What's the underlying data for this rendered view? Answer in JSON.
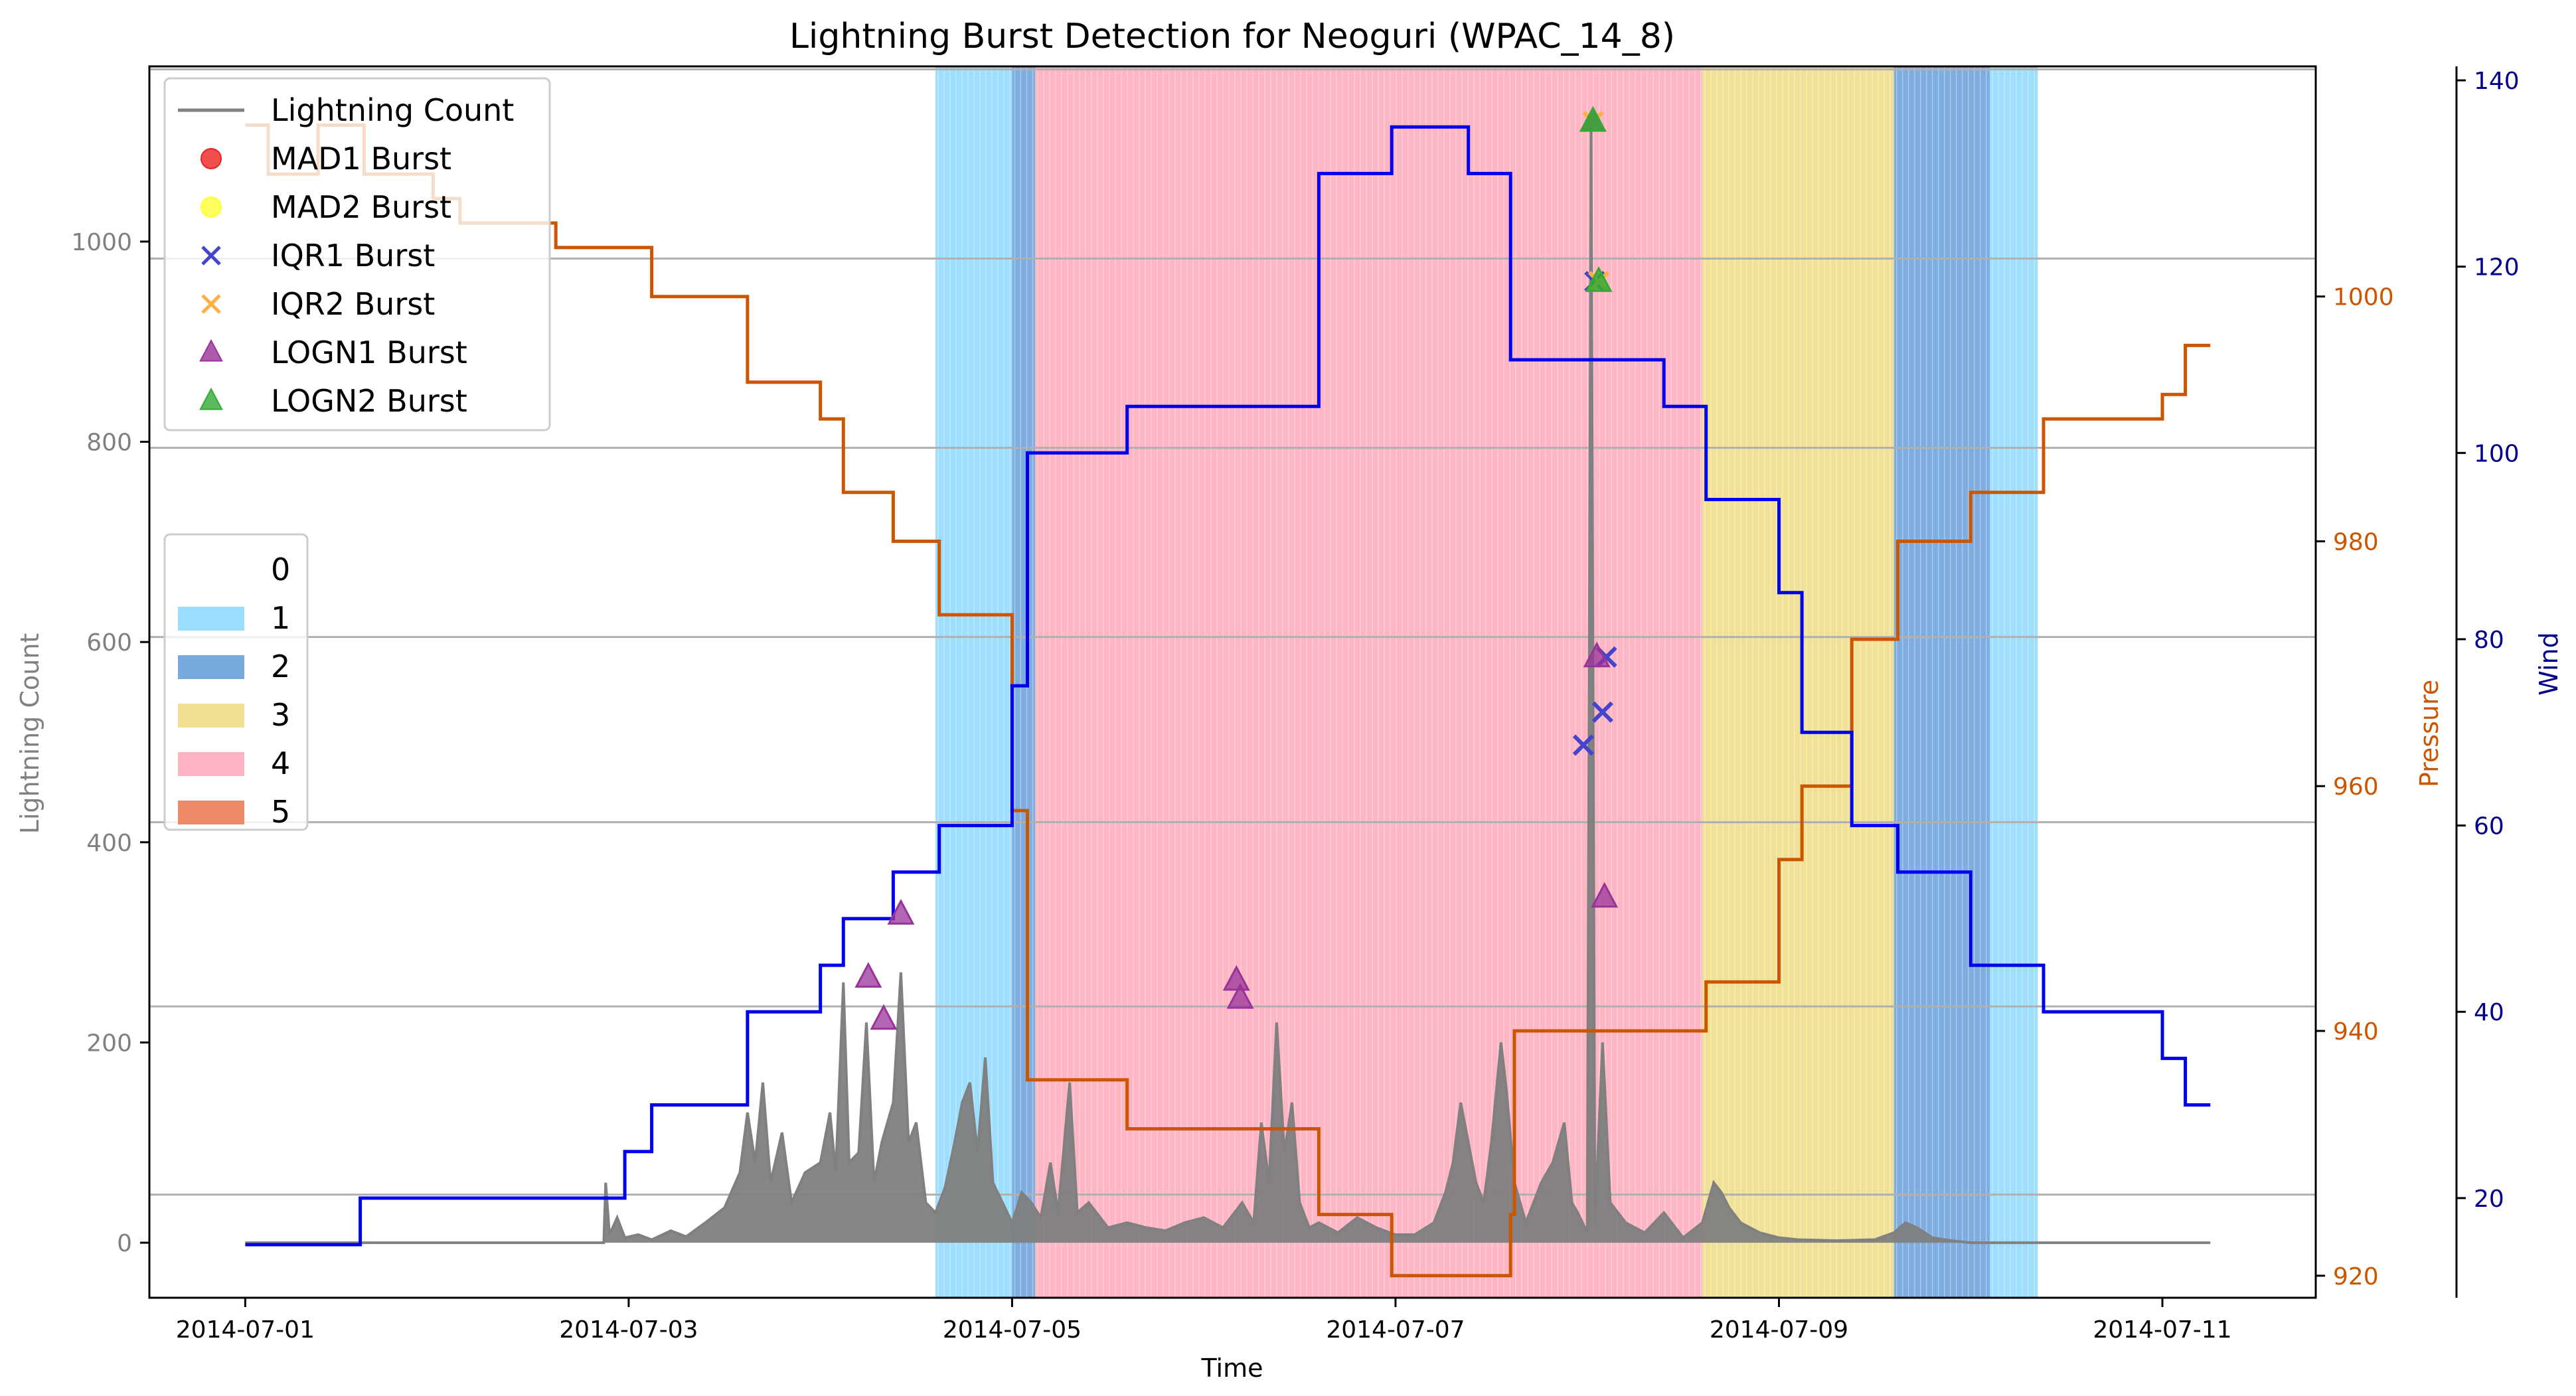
{
  "chart_data": {
    "type": "line",
    "title": "Lightning Burst Detection for Neoguri (WPAC_14_8)",
    "xlabel": "Time",
    "ylabel_left": "Lightning Count",
    "ylabel_right1": "Pressure",
    "ylabel_right2": "Wind",
    "x_ticks": [
      "2014-07-01",
      "2014-07-03",
      "2014-07-05",
      "2014-07-07",
      "2014-07-09",
      "2014-07-11"
    ],
    "x_range_days": [
      -0.5,
      10.8
    ],
    "y_left_ticks": [
      0,
      200,
      400,
      600,
      800,
      1000
    ],
    "y_left_range": [
      -55,
      1175
    ],
    "y_pressure_ticks": [
      920,
      940,
      960,
      980,
      1000
    ],
    "y_pressure_range": [
      918.2,
      1018.8
    ],
    "y_wind_ticks": [
      20,
      40,
      60,
      80,
      100,
      120,
      140
    ],
    "y_wind_range": [
      9.3,
      141.5
    ],
    "grid": "horizontal",
    "colors": {
      "lightning": "#808080",
      "pressure": "#cc5500",
      "wind": "#0000ee",
      "left_axis_text": "#808080",
      "pressure_axis": "#cc5500",
      "wind_axis": "#00008b",
      "cat0": "#ffffff",
      "cat1": "#99ddff",
      "cat2": "#77a9dd",
      "cat3": "#f0df90",
      "cat4": "#ffb2c1",
      "cat5": "#ee8866",
      "mad1": "#ee2222",
      "mad2": "#ffff33",
      "iqr1": "#4444cc",
      "iqr2": "#ffb040",
      "logn1": "#993399",
      "logn2": "#33aa33"
    },
    "legend_series": {
      "position": "upper-left",
      "entries": [
        {
          "label": "Lightning Count",
          "kind": "line",
          "color": "#808080"
        },
        {
          "label": "MAD1 Burst",
          "kind": "circle",
          "color": "#ee2222"
        },
        {
          "label": "MAD2 Burst",
          "kind": "circle",
          "color": "#ffff33"
        },
        {
          "label": "IQR1 Burst",
          "kind": "x",
          "color": "#4444cc"
        },
        {
          "label": "IQR2 Burst",
          "kind": "x",
          "color": "#ffb040"
        },
        {
          "label": "LOGN1 Burst",
          "kind": "triangle",
          "color": "#993399"
        },
        {
          "label": "LOGN2 Burst",
          "kind": "triangle",
          "color": "#33aa33"
        }
      ]
    },
    "legend_categories": {
      "position": "center-left",
      "entries": [
        {
          "label": "0",
          "color": "#ffffff"
        },
        {
          "label": "1",
          "color": "#99ddff"
        },
        {
          "label": "2",
          "color": "#77a9dd"
        },
        {
          "label": "3",
          "color": "#f0df90"
        },
        {
          "label": "4",
          "color": "#ffb2c1"
        },
        {
          "label": "5",
          "color": "#ee8866"
        }
      ]
    },
    "category_bands": [
      {
        "start": 3.6,
        "end": 4.0,
        "cat": 1
      },
      {
        "start": 4.0,
        "end": 4.12,
        "cat": 2
      },
      {
        "start": 4.12,
        "end": 7.6,
        "cat": 4
      },
      {
        "start": 7.6,
        "end": 8.6,
        "cat": 3
      },
      {
        "start": 8.6,
        "end": 9.1,
        "cat": 2
      },
      {
        "start": 9.1,
        "end": 9.35,
        "cat": 1
      }
    ],
    "extra_gridlines_left": [
      1172,
      983,
      794,
      605,
      420,
      236,
      48
    ],
    "wind": [
      [
        0,
        15
      ],
      [
        0.6,
        15
      ],
      [
        0.6,
        20
      ],
      [
        1.98,
        20
      ],
      [
        1.98,
        25
      ],
      [
        2.12,
        25
      ],
      [
        2.12,
        30
      ],
      [
        2.62,
        30
      ],
      [
        2.62,
        40
      ],
      [
        3.0,
        40
      ],
      [
        3.0,
        45
      ],
      [
        3.12,
        45
      ],
      [
        3.12,
        50
      ],
      [
        3.38,
        50
      ],
      [
        3.38,
        55
      ],
      [
        3.62,
        55
      ],
      [
        3.62,
        60
      ],
      [
        4.0,
        60
      ],
      [
        4.0,
        75
      ],
      [
        4.08,
        75
      ],
      [
        4.08,
        100
      ],
      [
        4.6,
        100
      ],
      [
        4.6,
        105
      ],
      [
        5.6,
        105
      ],
      [
        5.6,
        130
      ],
      [
        5.98,
        130
      ],
      [
        5.98,
        135
      ],
      [
        6.38,
        135
      ],
      [
        6.38,
        130
      ],
      [
        6.6,
        130
      ],
      [
        6.6,
        110
      ],
      [
        7.4,
        110
      ],
      [
        7.4,
        105
      ],
      [
        7.62,
        105
      ],
      [
        7.62,
        95
      ],
      [
        8.0,
        95
      ],
      [
        8.0,
        85
      ],
      [
        8.12,
        85
      ],
      [
        8.12,
        70
      ],
      [
        8.38,
        70
      ],
      [
        8.38,
        60
      ],
      [
        8.62,
        60
      ],
      [
        8.62,
        55
      ],
      [
        9.0,
        55
      ],
      [
        9.0,
        45
      ],
      [
        9.38,
        45
      ],
      [
        9.38,
        40
      ],
      [
        10.0,
        40
      ],
      [
        10.0,
        35
      ],
      [
        10.12,
        35
      ],
      [
        10.12,
        30
      ],
      [
        10.25,
        30
      ]
    ],
    "pressure": [
      [
        0,
        1014
      ],
      [
        0.12,
        1014
      ],
      [
        0.12,
        1010
      ],
      [
        0.38,
        1010
      ],
      [
        0.38,
        1014
      ],
      [
        0.62,
        1014
      ],
      [
        0.62,
        1010
      ],
      [
        0.98,
        1010
      ],
      [
        0.98,
        1008
      ],
      [
        1.12,
        1008
      ],
      [
        1.12,
        1006
      ],
      [
        1.62,
        1006
      ],
      [
        1.62,
        1004
      ],
      [
        2.12,
        1004
      ],
      [
        2.12,
        1000
      ],
      [
        2.62,
        1000
      ],
      [
        2.62,
        993
      ],
      [
        3.0,
        993
      ],
      [
        3.0,
        990
      ],
      [
        3.12,
        990
      ],
      [
        3.12,
        984
      ],
      [
        3.38,
        984
      ],
      [
        3.38,
        980
      ],
      [
        3.62,
        980
      ],
      [
        3.62,
        974
      ],
      [
        4.0,
        974
      ],
      [
        4.0,
        958
      ],
      [
        4.08,
        958
      ],
      [
        4.08,
        936
      ],
      [
        4.6,
        936
      ],
      [
        4.6,
        932
      ],
      [
        5.6,
        932
      ],
      [
        5.6,
        925
      ],
      [
        5.98,
        925
      ],
      [
        5.98,
        920
      ],
      [
        6.38,
        920
      ],
      [
        6.38,
        920
      ],
      [
        6.6,
        920
      ],
      [
        6.6,
        925
      ],
      [
        6.62,
        925
      ],
      [
        6.62,
        940
      ],
      [
        7.62,
        940
      ],
      [
        7.62,
        944
      ],
      [
        8.0,
        944
      ],
      [
        8.0,
        954
      ],
      [
        8.12,
        954
      ],
      [
        8.12,
        960
      ],
      [
        8.38,
        960
      ],
      [
        8.38,
        972
      ],
      [
        8.62,
        972
      ],
      [
        8.62,
        980
      ],
      [
        9.0,
        980
      ],
      [
        9.0,
        984
      ],
      [
        9.38,
        984
      ],
      [
        9.38,
        990
      ],
      [
        10.0,
        990
      ],
      [
        10.0,
        992
      ],
      [
        10.12,
        992
      ],
      [
        10.12,
        996
      ],
      [
        10.25,
        996
      ]
    ],
    "lightning": [
      [
        0,
        0
      ],
      [
        1.87,
        0
      ],
      [
        1.88,
        60
      ],
      [
        1.9,
        8
      ],
      [
        1.94,
        25
      ],
      [
        1.98,
        5
      ],
      [
        2.05,
        8
      ],
      [
        2.12,
        3
      ],
      [
        2.22,
        12
      ],
      [
        2.3,
        6
      ],
      [
        2.4,
        20
      ],
      [
        2.5,
        35
      ],
      [
        2.58,
        70
      ],
      [
        2.62,
        130
      ],
      [
        2.66,
        80
      ],
      [
        2.7,
        160
      ],
      [
        2.74,
        60
      ],
      [
        2.8,
        110
      ],
      [
        2.85,
        40
      ],
      [
        2.92,
        70
      ],
      [
        3.0,
        80
      ],
      [
        3.05,
        130
      ],
      [
        3.08,
        70
      ],
      [
        3.12,
        260
      ],
      [
        3.15,
        80
      ],
      [
        3.2,
        90
      ],
      [
        3.24,
        220
      ],
      [
        3.28,
        60
      ],
      [
        3.32,
        100
      ],
      [
        3.38,
        140
      ],
      [
        3.42,
        270
      ],
      [
        3.46,
        100
      ],
      [
        3.5,
        120
      ],
      [
        3.55,
        40
      ],
      [
        3.6,
        30
      ],
      [
        3.65,
        55
      ],
      [
        3.7,
        100
      ],
      [
        3.74,
        140
      ],
      [
        3.78,
        160
      ],
      [
        3.82,
        90
      ],
      [
        3.86,
        185
      ],
      [
        3.9,
        60
      ],
      [
        3.95,
        40
      ],
      [
        4.0,
        20
      ],
      [
        4.05,
        50
      ],
      [
        4.1,
        40
      ],
      [
        4.15,
        25
      ],
      [
        4.2,
        80
      ],
      [
        4.24,
        30
      ],
      [
        4.3,
        160
      ],
      [
        4.34,
        30
      ],
      [
        4.4,
        40
      ],
      [
        4.5,
        15
      ],
      [
        4.6,
        20
      ],
      [
        4.7,
        15
      ],
      [
        4.8,
        12
      ],
      [
        4.9,
        20
      ],
      [
        5.0,
        25
      ],
      [
        5.1,
        15
      ],
      [
        5.2,
        40
      ],
      [
        5.26,
        20
      ],
      [
        5.3,
        120
      ],
      [
        5.34,
        60
      ],
      [
        5.38,
        220
      ],
      [
        5.42,
        90
      ],
      [
        5.46,
        140
      ],
      [
        5.5,
        40
      ],
      [
        5.55,
        15
      ],
      [
        5.6,
        20
      ],
      [
        5.7,
        10
      ],
      [
        5.8,
        25
      ],
      [
        5.9,
        15
      ],
      [
        6.0,
        8
      ],
      [
        6.1,
        8
      ],
      [
        6.2,
        20
      ],
      [
        6.26,
        50
      ],
      [
        6.3,
        80
      ],
      [
        6.34,
        140
      ],
      [
        6.38,
        100
      ],
      [
        6.42,
        60
      ],
      [
        6.46,
        40
      ],
      [
        6.5,
        100
      ],
      [
        6.55,
        200
      ],
      [
        6.58,
        150
      ],
      [
        6.62,
        60
      ],
      [
        6.68,
        20
      ],
      [
        6.76,
        60
      ],
      [
        6.82,
        80
      ],
      [
        6.88,
        120
      ],
      [
        6.92,
        40
      ],
      [
        6.95,
        30
      ],
      [
        7.0,
        10
      ],
      [
        7.02,
        1120
      ],
      [
        7.04,
        20
      ],
      [
        7.08,
        200
      ],
      [
        7.12,
        40
      ],
      [
        7.2,
        20
      ],
      [
        7.3,
        10
      ],
      [
        7.4,
        30
      ],
      [
        7.48,
        10
      ],
      [
        7.5,
        5
      ],
      [
        7.6,
        20
      ],
      [
        7.66,
        60
      ],
      [
        7.7,
        50
      ],
      [
        7.74,
        35
      ],
      [
        7.8,
        20
      ],
      [
        7.9,
        10
      ],
      [
        8.0,
        5
      ],
      [
        8.1,
        3
      ],
      [
        8.3,
        2
      ],
      [
        8.5,
        3
      ],
      [
        8.6,
        10
      ],
      [
        8.66,
        20
      ],
      [
        8.72,
        15
      ],
      [
        8.8,
        5
      ],
      [
        8.9,
        2
      ],
      [
        9.0,
        0
      ],
      [
        10.25,
        0
      ]
    ],
    "logn1": [
      [
        3.25,
        265
      ],
      [
        3.33,
        223
      ],
      [
        3.42,
        328
      ],
      [
        5.17,
        262
      ],
      [
        5.19,
        244
      ],
      [
        7.05,
        585
      ],
      [
        7.09,
        345
      ],
      [
        7.03,
        1120
      ]
    ],
    "logn2": [
      [
        7.03,
        1120
      ],
      [
        7.06,
        960
      ]
    ],
    "iqr1": [
      [
        6.98,
        497
      ],
      [
        7.04,
        960
      ],
      [
        7.08,
        530
      ],
      [
        7.1,
        585
      ]
    ],
    "iqr2": [
      [
        7.03,
        1120
      ],
      [
        7.06,
        960
      ]
    ]
  }
}
